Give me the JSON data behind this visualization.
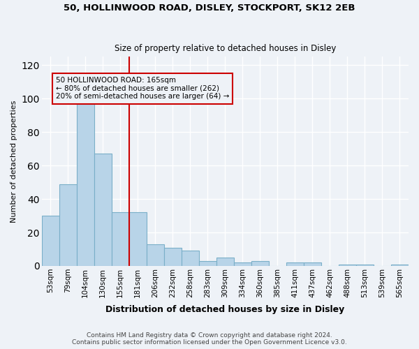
{
  "title": "50, HOLLINWOOD ROAD, DISLEY, STOCKPORT, SK12 2EB",
  "subtitle": "Size of property relative to detached houses in Disley",
  "xlabel": "Distribution of detached houses by size in Disley",
  "ylabel": "Number of detached properties",
  "categories": [
    "53sqm",
    "79sqm",
    "104sqm",
    "130sqm",
    "155sqm",
    "181sqm",
    "206sqm",
    "232sqm",
    "258sqm",
    "283sqm",
    "309sqm",
    "334sqm",
    "360sqm",
    "385sqm",
    "411sqm",
    "437sqm",
    "462sqm",
    "488sqm",
    "513sqm",
    "539sqm",
    "565sqm"
  ],
  "values": [
    30,
    49,
    100,
    67,
    32,
    32,
    13,
    11,
    9,
    3,
    5,
    2,
    3,
    0,
    2,
    2,
    0,
    1,
    1,
    0,
    1
  ],
  "bar_color": "#b8d4e8",
  "bar_edge_color": "#7aafc8",
  "vline_x": 4.5,
  "vline_color": "#cc0000",
  "ylim": [
    0,
    125
  ],
  "yticks": [
    0,
    20,
    40,
    60,
    80,
    100,
    120
  ],
  "annotation_line1": "50 HOLLINWOOD ROAD: 165sqm",
  "annotation_line2": "← 80% of detached houses are smaller (262)",
  "annotation_line3": "20% of semi-detached houses are larger (64) →",
  "annotation_box_color": "#cc0000",
  "footnote1": "Contains HM Land Registry data © Crown copyright and database right 2024.",
  "footnote2": "Contains public sector information licensed under the Open Government Licence v3.0.",
  "background_color": "#eef2f7",
  "grid_color": "#ffffff"
}
